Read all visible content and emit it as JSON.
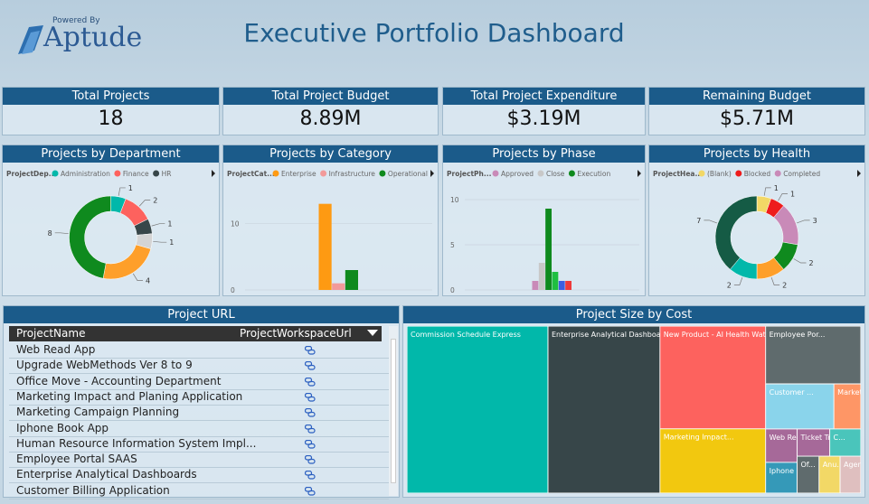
{
  "header": {
    "powered_by": "Powered By",
    "logo": "Aptude",
    "title": "Executive Portfolio Dashboard"
  },
  "kpis": [
    {
      "title": "Total Projects",
      "value": "18"
    },
    {
      "title": "Total Project Budget",
      "value": "8.89M"
    },
    {
      "title": "Total Project Expenditure",
      "value": "$3.19M"
    },
    {
      "title": "Remaining Budget",
      "value": "$5.71M"
    }
  ],
  "chart_data": [
    {
      "type": "donut",
      "title": "Projects by Department",
      "legend_title": "ProjectDep...",
      "categories": [
        "Administration",
        "Finance",
        "HR",
        null,
        null,
        null
      ],
      "values": [
        1,
        2,
        1,
        1,
        4,
        8
      ],
      "colors": [
        "#01b8aa",
        "#fd625e",
        "#374649",
        "#d4d4d4",
        "#fe9f2a",
        "#0f8a1e"
      ]
    },
    {
      "type": "bar",
      "title": "Projects by Category",
      "legend_title": "ProjectCat...",
      "categories": [
        null
      ],
      "series": [
        {
          "name": "Enterprise",
          "color": "#fe9a12",
          "values": [
            13
          ]
        },
        {
          "name": "Infrastructure",
          "color": "#f29a9a",
          "values": [
            1
          ]
        },
        {
          "name": "Operational",
          "color": "#0f8a1e",
          "values": [
            3
          ]
        }
      ],
      "ylim": [
        0,
        15
      ],
      "yticks": [
        0,
        10
      ]
    },
    {
      "type": "bar",
      "title": "Projects by Phase",
      "legend_title": "ProjectPh...",
      "categories": [
        null
      ],
      "series": [
        {
          "name": "Approved",
          "color": "#c98ab8",
          "values": [
            1
          ]
        },
        {
          "name": "Close",
          "color": "#c8c8c8",
          "values": [
            3
          ]
        },
        {
          "name": "Execution",
          "color": "#0f8a1e",
          "values": [
            9
          ]
        },
        {
          "name": null,
          "color": "#1fbf40",
          "values": [
            2
          ]
        },
        {
          "name": null,
          "color": "#3c5ee0",
          "values": [
            1
          ]
        },
        {
          "name": null,
          "color": "#ee3a3a",
          "values": [
            1
          ]
        }
      ],
      "ylim": [
        0,
        11
      ],
      "yticks": [
        0,
        5,
        10
      ]
    },
    {
      "type": "donut",
      "title": "Projects by Health",
      "legend_title": "ProjectHea...",
      "categories": [
        "(Blank)",
        "Blocked",
        "Completed",
        null,
        null,
        null,
        null
      ],
      "values": [
        1,
        1,
        3,
        2,
        2,
        2,
        7
      ],
      "colors": [
        "#f2d866",
        "#ee1c1c",
        "#c98ab8",
        "#0f8a1e",
        "#fe9f2a",
        "#01b8aa",
        "#155b45"
      ]
    },
    {
      "type": "treemap",
      "title": "Project Size by Cost",
      "labels": [
        "Commission Schedule Express",
        "Enterprise Analytical Dashboards",
        "New Product - AI Health Watch",
        "Marketing Impact...",
        "Employee Por...",
        "Customer ...",
        "Marketing ...",
        "Web Rea...",
        "Iphone B...",
        "Ticket Tr...",
        "C...",
        "Of...",
        "Anu...",
        "Agent Ex..."
      ],
      "values": [
        291,
        231,
        134,
        84,
        68,
        38,
        15,
        13,
        12,
        11,
        10.5,
        10,
        9.6,
        9.5
      ],
      "colors": [
        "#01b8aa",
        "#374649",
        "#fd625e",
        "#f2c80f",
        "#5f6b6d",
        "#8ad4eb",
        "#fe9666",
        "#a66999",
        "#3599b8",
        "#a66999",
        "#4ac5bb",
        "#5f6b6d",
        "#f2d866",
        "#dfbfbf"
      ]
    }
  ],
  "table": {
    "title": "Project URL",
    "columns": [
      "ProjectName",
      "ProjectWorkspaceUrl"
    ],
    "rows": [
      "Web Read App",
      "Upgrade WebMethods Ver 8 to 9",
      "Office Move - Accounting Department",
      "Marketing Impact and Planing Application",
      "Marketing Campaign Planning",
      "Iphone Book App",
      "Human Resource Information System Impl...",
      "Employee Portal SAAS",
      "Enterprise Analytical Dashboards",
      "Customer Billing Application"
    ]
  }
}
